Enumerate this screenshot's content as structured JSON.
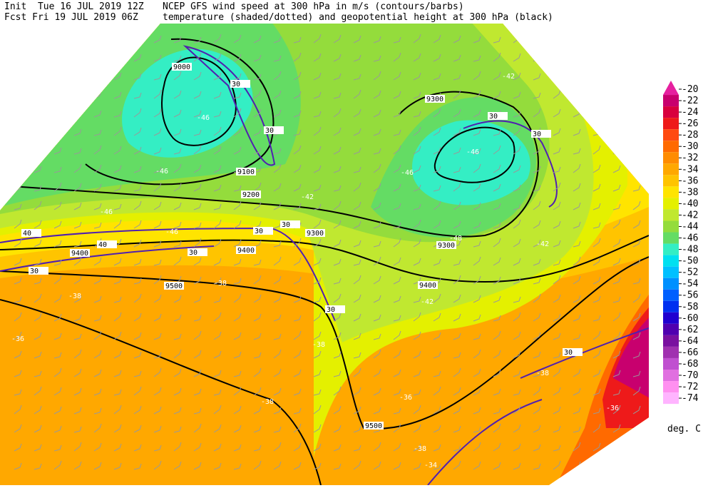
{
  "header": {
    "init": "Init  Tue 16 JUL 2019 12Z",
    "fcst": "Fcst Fri 19 JUL 2019 06Z",
    "line1": "NCEP GFS wind speed at 300 hPa in m/s (contours/barbs)",
    "line2": "temperature (shaded/dotted) and geopotential height at 300 hPa (black)"
  },
  "colorbar": {
    "labels": [
      "-20",
      "-22",
      "-24",
      "-26",
      "-28",
      "-30",
      "-32",
      "-34",
      "-36",
      "-38",
      "-40",
      "-42",
      "-44",
      "-46",
      "-48",
      "-50",
      "-52",
      "-54",
      "-56",
      "-58",
      "-60",
      "-62",
      "-64",
      "-66",
      "-68",
      "-70",
      "-72",
      "-74"
    ],
    "colors": [
      "#e6209f",
      "#c8006e",
      "#d8003e",
      "#ee1a1a",
      "#ff4a10",
      "#ff6a00",
      "#ff8c00",
      "#ffa800",
      "#ffc400",
      "#ffe400",
      "#e4f000",
      "#c0e830",
      "#94dc3c",
      "#64dc64",
      "#34eec4",
      "#00e0f0",
      "#00c0ff",
      "#0090ff",
      "#0060ff",
      "#0030f0",
      "#2000d0",
      "#5000b0",
      "#7a10a0",
      "#a030b0",
      "#c050d0",
      "#e070e0",
      "#ff90f0",
      "#ffb4ff"
    ],
    "unit": "deg. C"
  },
  "map": {
    "height_labels": [
      "9000",
      "9100",
      "9200",
      "9300",
      "9300",
      "9300",
      "9400",
      "9400",
      "9400",
      "9500",
      "9500"
    ],
    "wind_labels": [
      "30",
      "30",
      "30",
      "30",
      "30",
      "30",
      "30",
      "40",
      "40",
      "30",
      "30",
      "30"
    ],
    "temperature_labels": [
      "-46",
      "-46",
      "-46",
      "-46",
      "-46",
      "-46",
      "-42",
      "-48",
      "-42",
      "-38",
      "-36",
      "-38",
      "-42",
      "-38",
      "-38",
      "-36",
      "-38",
      "-34",
      "-36",
      "-38",
      "-42"
    ]
  }
}
